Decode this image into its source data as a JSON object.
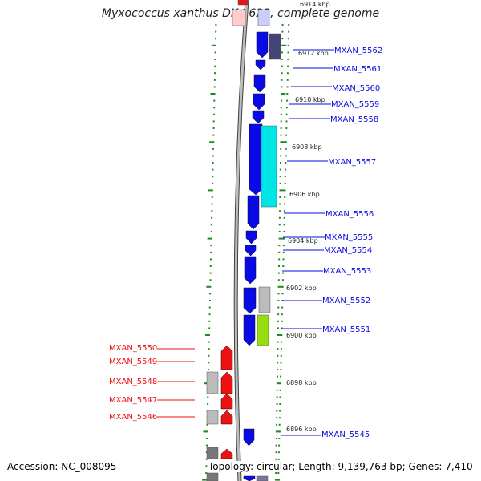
{
  "title": "Myxococcus xanthus DK 1622, complete genome",
  "footer": {
    "accession": "Accession: NC_008095",
    "summary": "Topology: circular; Length: 9,139,763 bp; Genes: 7,410"
  },
  "kbp_ticks": [
    "6914 kbp",
    "6912 kbp",
    "6910 kbp",
    "6908 kbp",
    "6906 kbp",
    "6904 kbp",
    "6902 kbp",
    "6900 kbp",
    "6898 kbp",
    "6896 kbp"
  ],
  "genes_right": [
    "MXAN_5562",
    "MXAN_5561",
    "MXAN_5560",
    "MXAN_5559",
    "MXAN_5558",
    "MXAN_5557",
    "MXAN_5556",
    "MXAN_5555",
    "MXAN_5554",
    "MXAN_5553",
    "MXAN_5552",
    "MXAN_5551",
    "MXAN_5545"
  ],
  "genes_left": [
    "MXAN_5550",
    "MXAN_5549",
    "MXAN_5548",
    "MXAN_5547",
    "MXAN_5546"
  ],
  "colors": {
    "forward_gene": "#0a0ae6",
    "reverse_gene": "#ee1111",
    "highlight_cyan": "#00e6e6",
    "highlight_green": "#99dd11",
    "gray_feature": "#bbbbbb",
    "dark_feature": "#444477",
    "ruler": "#228822",
    "backbone": "#999999"
  }
}
